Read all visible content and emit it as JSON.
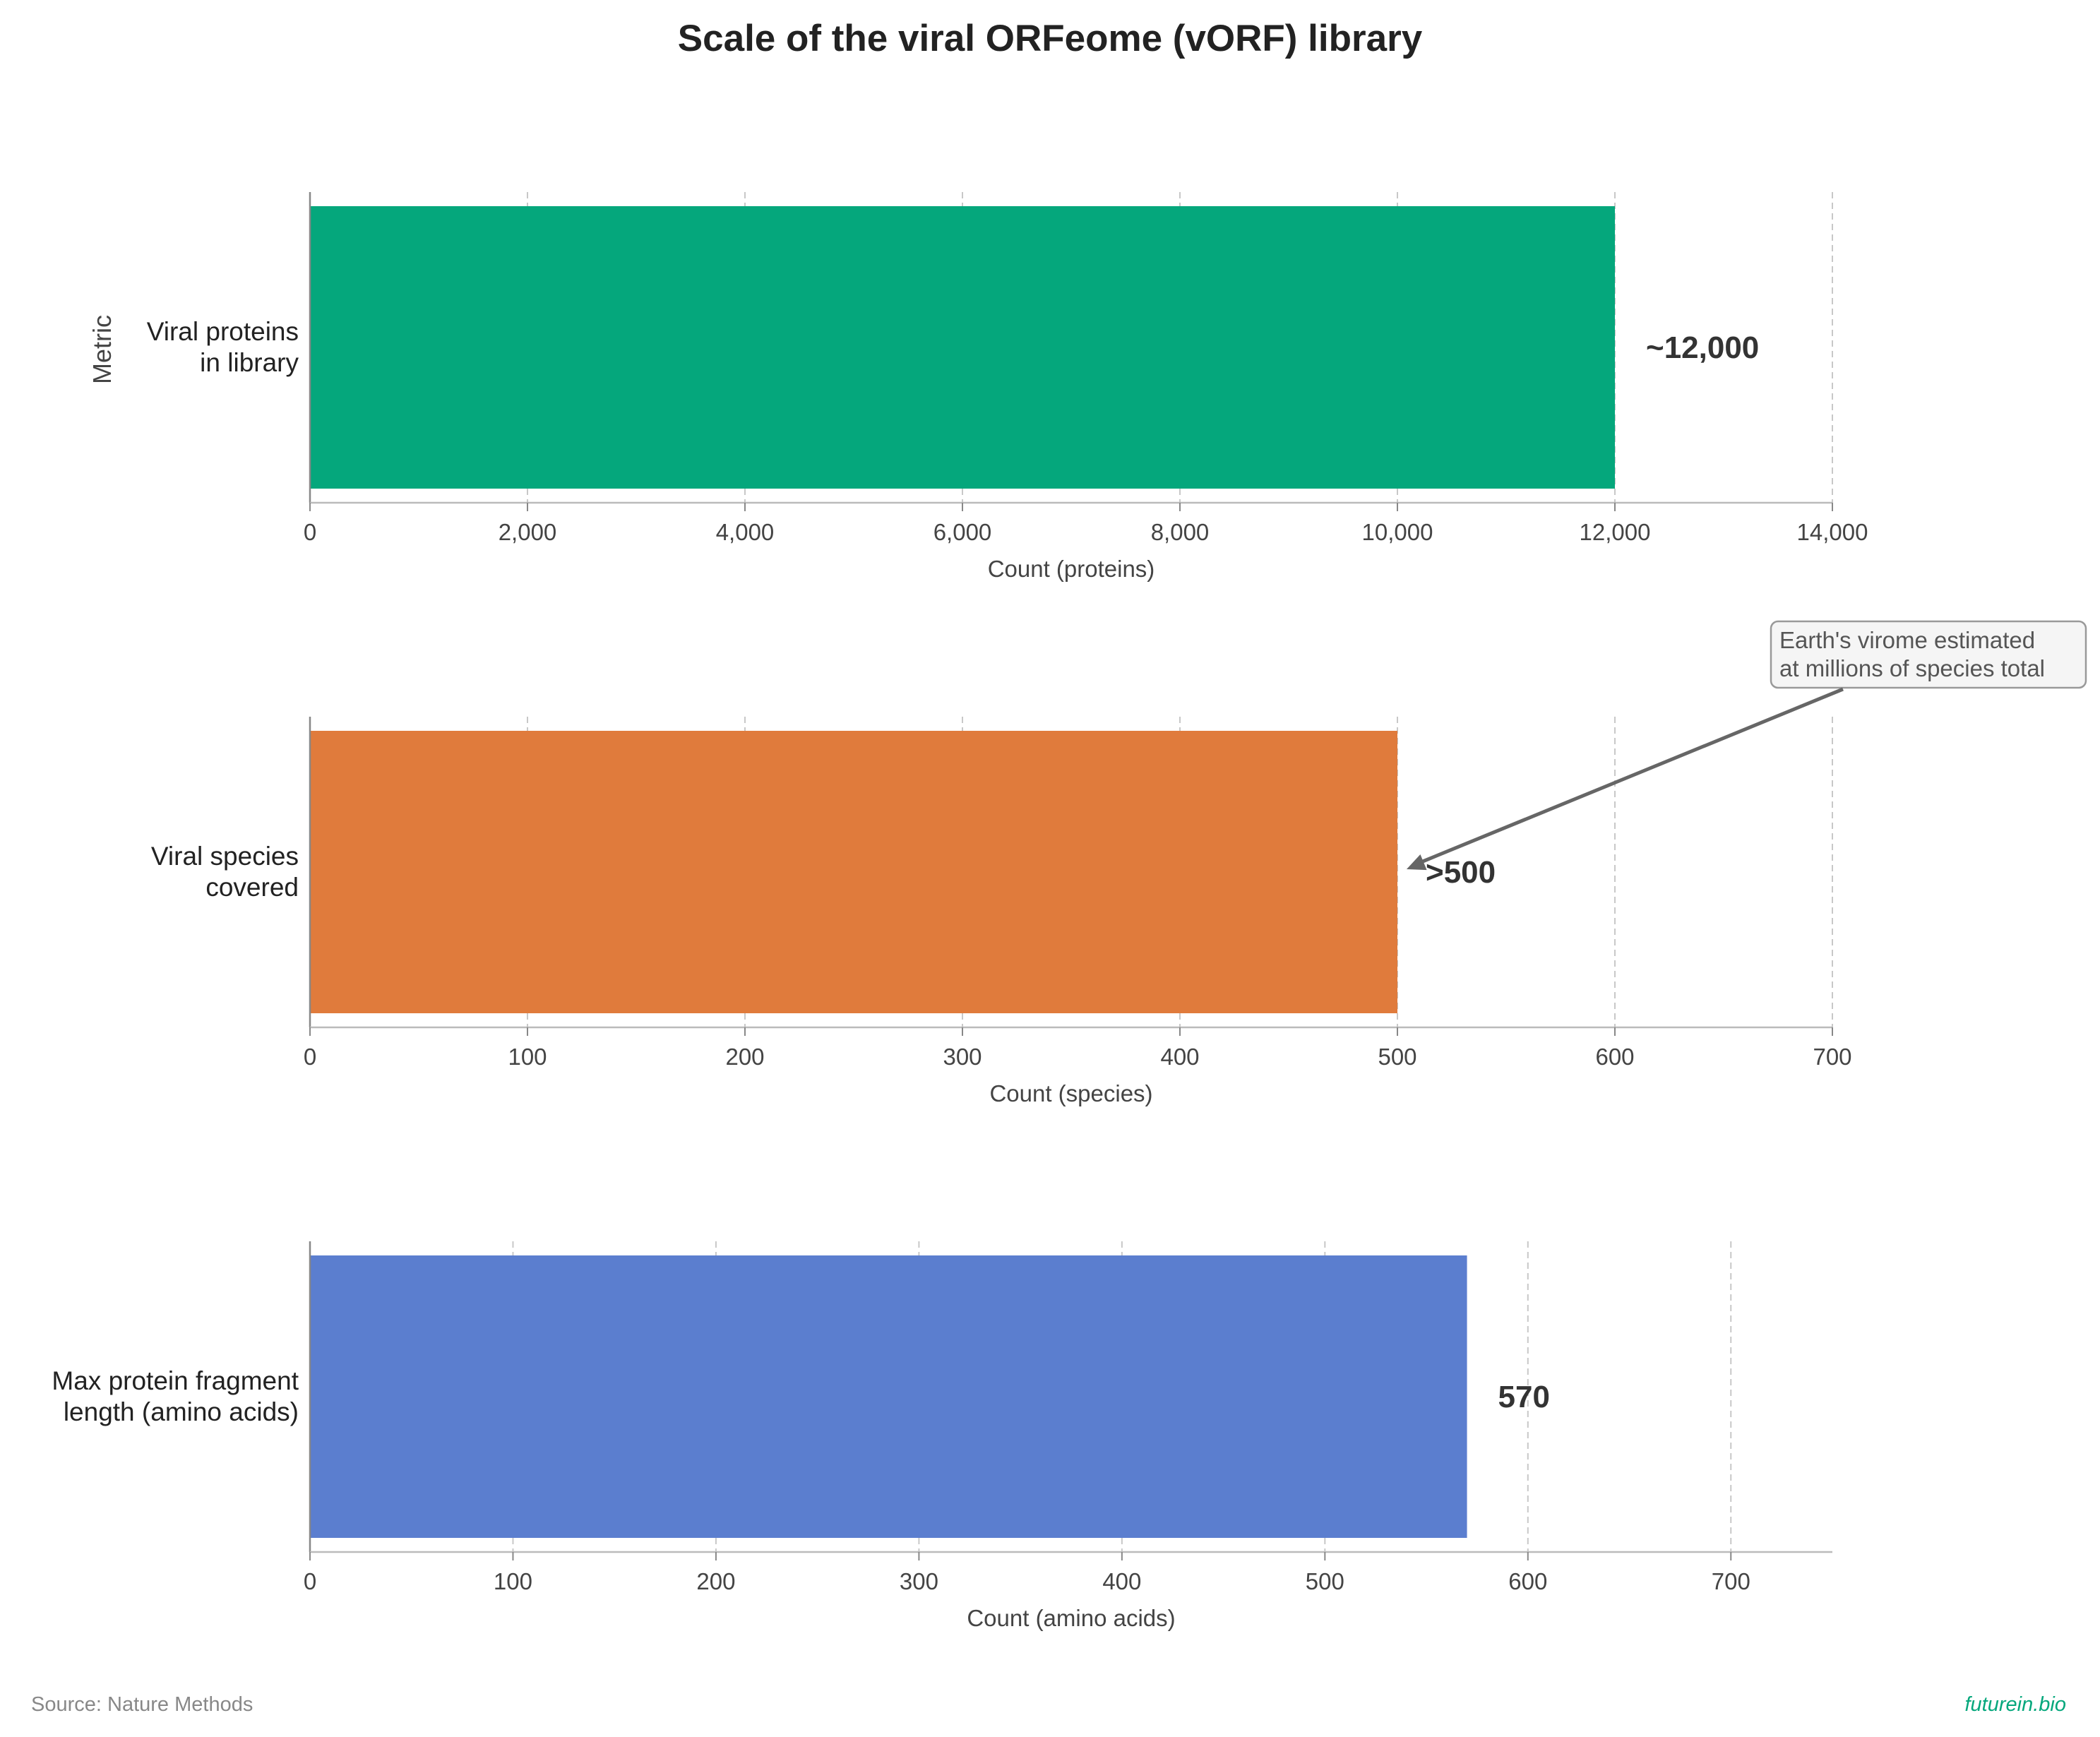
{
  "chart_data": {
    "type": "bar",
    "orientation": "horizontal",
    "title": "Scale of the viral ORFeome (vORF) library",
    "ylabel": "Metric",
    "grid": "x-dashed",
    "panels": [
      {
        "category": "Viral proteins in library",
        "category_lines": [
          "Viral proteins",
          "in library"
        ],
        "value": 12000,
        "value_label": "~12,000",
        "color": "#05a77c",
        "xlabel": "Count (proteins)",
        "xlim": [
          0,
          14000
        ],
        "ticks": [
          0,
          2000,
          4000,
          6000,
          8000,
          10000,
          12000,
          14000
        ],
        "tick_labels": [
          "0",
          "2,000",
          "4,000",
          "6,000",
          "8,000",
          "10,000",
          "12,000",
          "14,000"
        ]
      },
      {
        "category": "Viral species covered",
        "category_lines": [
          "Viral species",
          "covered"
        ],
        "value": 500,
        "value_label": ">500",
        "color": "#e07b3c",
        "xlabel": "Count (species)",
        "xlim": [
          0,
          700
        ],
        "ticks": [
          0,
          100,
          200,
          300,
          400,
          500,
          600,
          700
        ],
        "tick_labels": [
          "0",
          "100",
          "200",
          "300",
          "400",
          "500",
          "600",
          "700"
        ],
        "annotation": {
          "lines": [
            "Earth's virome estimated",
            "at millions of species total"
          ],
          "points_to": 500
        }
      },
      {
        "category": "Max protein fragment length (amino acids)",
        "category_lines": [
          "Max protein fragment",
          "length (amino acids)"
        ],
        "value": 570,
        "value_label": "570",
        "color": "#5b7ecf",
        "xlabel": "Count (amino acids)",
        "xlim": [
          0,
          750
        ],
        "ticks": [
          0,
          100,
          200,
          300,
          400,
          500,
          600,
          700
        ],
        "tick_labels": [
          "0",
          "100",
          "200",
          "300",
          "400",
          "500",
          "600",
          "700"
        ]
      }
    ]
  },
  "footer": {
    "source": "Source: Nature Methods",
    "brand": "futurein.bio"
  }
}
